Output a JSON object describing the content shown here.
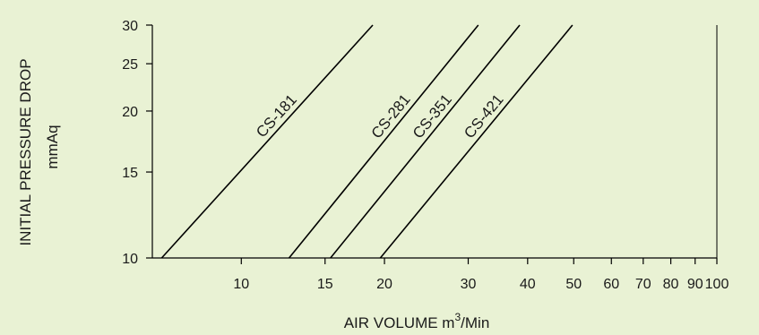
{
  "chart_data": {
    "type": "line",
    "xlabel": "AIR VOLUME m",
    "xlabel_sup": "3",
    "xlabel_suffix": "/Min",
    "ylabel_line1": "INITIAL PRESSURE DROP",
    "ylabel_line2": "mmAq",
    "x_scale": "log",
    "y_scale": "log",
    "xlim": [
      6.5,
      100
    ],
    "ylim": [
      10,
      30
    ],
    "x_ticks": [
      10,
      15,
      20,
      30,
      40,
      50,
      60,
      70,
      80,
      90,
      100
    ],
    "x_tick_labels": [
      "10",
      "15",
      "20",
      "30",
      "40",
      "50",
      "60",
      "70",
      "80",
      "90",
      "100"
    ],
    "y_ticks": [
      10,
      15,
      20,
      25,
      30
    ],
    "y_tick_labels": [
      "10",
      "15",
      "20",
      "25",
      "30"
    ],
    "grid": false,
    "series": [
      {
        "name": "CS-181",
        "x": [
          6.8,
          18.9
        ],
        "y": [
          10,
          30
        ]
      },
      {
        "name": "CS-281",
        "x": [
          12.6,
          31.5
        ],
        "y": [
          10,
          30
        ]
      },
      {
        "name": "CS-351",
        "x": [
          15.4,
          38.5
        ],
        "y": [
          10,
          30
        ]
      },
      {
        "name": "CS-421",
        "x": [
          19.6,
          49.7
        ],
        "y": [
          10,
          30
        ]
      }
    ],
    "colors": {
      "background": "#e9f2d4",
      "line": "#000000"
    }
  }
}
